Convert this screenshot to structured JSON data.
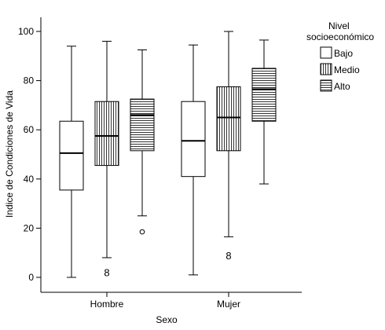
{
  "chart_data": {
    "type": "boxplot",
    "xlabel": "Sexo",
    "ylabel": "Indice de Condiciones de Vida",
    "ylim": [
      -5,
      105
    ],
    "yticks": [
      0,
      20,
      40,
      60,
      80,
      100
    ],
    "categories": [
      "Hombre",
      "Mujer"
    ],
    "legend": {
      "title_lines": [
        "Nivel",
        "socioeconómico"
      ],
      "placement": "top-right",
      "items": [
        {
          "label": "Bajo",
          "pattern": "none"
        },
        {
          "label": "Medio",
          "pattern": "vertical"
        },
        {
          "label": "Alto",
          "pattern": "horizontal"
        }
      ]
    },
    "series": [
      {
        "name": "Bajo",
        "pattern": "none",
        "boxes": [
          {
            "category": "Hombre",
            "min": 0,
            "q1": 35.5,
            "median": 50.5,
            "q3": 63.5,
            "max": 94,
            "outliers": []
          },
          {
            "category": "Mujer",
            "min": 1,
            "q1": 41,
            "median": 55.5,
            "q3": 71.5,
            "max": 94.5,
            "outliers": []
          }
        ]
      },
      {
        "name": "Medio",
        "pattern": "vertical",
        "boxes": [
          {
            "category": "Hombre",
            "min": 8,
            "q1": 45.5,
            "median": 57.5,
            "q3": 71.5,
            "max": 96,
            "outliers": [],
            "extreme_markers": [
              {
                "value": 2,
                "label": "8"
              }
            ]
          },
          {
            "category": "Mujer",
            "min": 16.5,
            "q1": 51.5,
            "median": 65,
            "q3": 77.5,
            "max": 100,
            "outliers": [],
            "extreme_markers": [
              {
                "value": 9,
                "label": "8"
              }
            ]
          }
        ]
      },
      {
        "name": "Alto",
        "pattern": "horizontal",
        "boxes": [
          {
            "category": "Hombre",
            "min": 25,
            "q1": 51.5,
            "median": 66,
            "q3": 72.5,
            "max": 92.5,
            "outliers": [
              18.5
            ]
          },
          {
            "category": "Mujer",
            "min": 38,
            "q1": 63.5,
            "median": 76.5,
            "q3": 85,
            "max": 96.5,
            "outliers": []
          }
        ]
      }
    ]
  }
}
